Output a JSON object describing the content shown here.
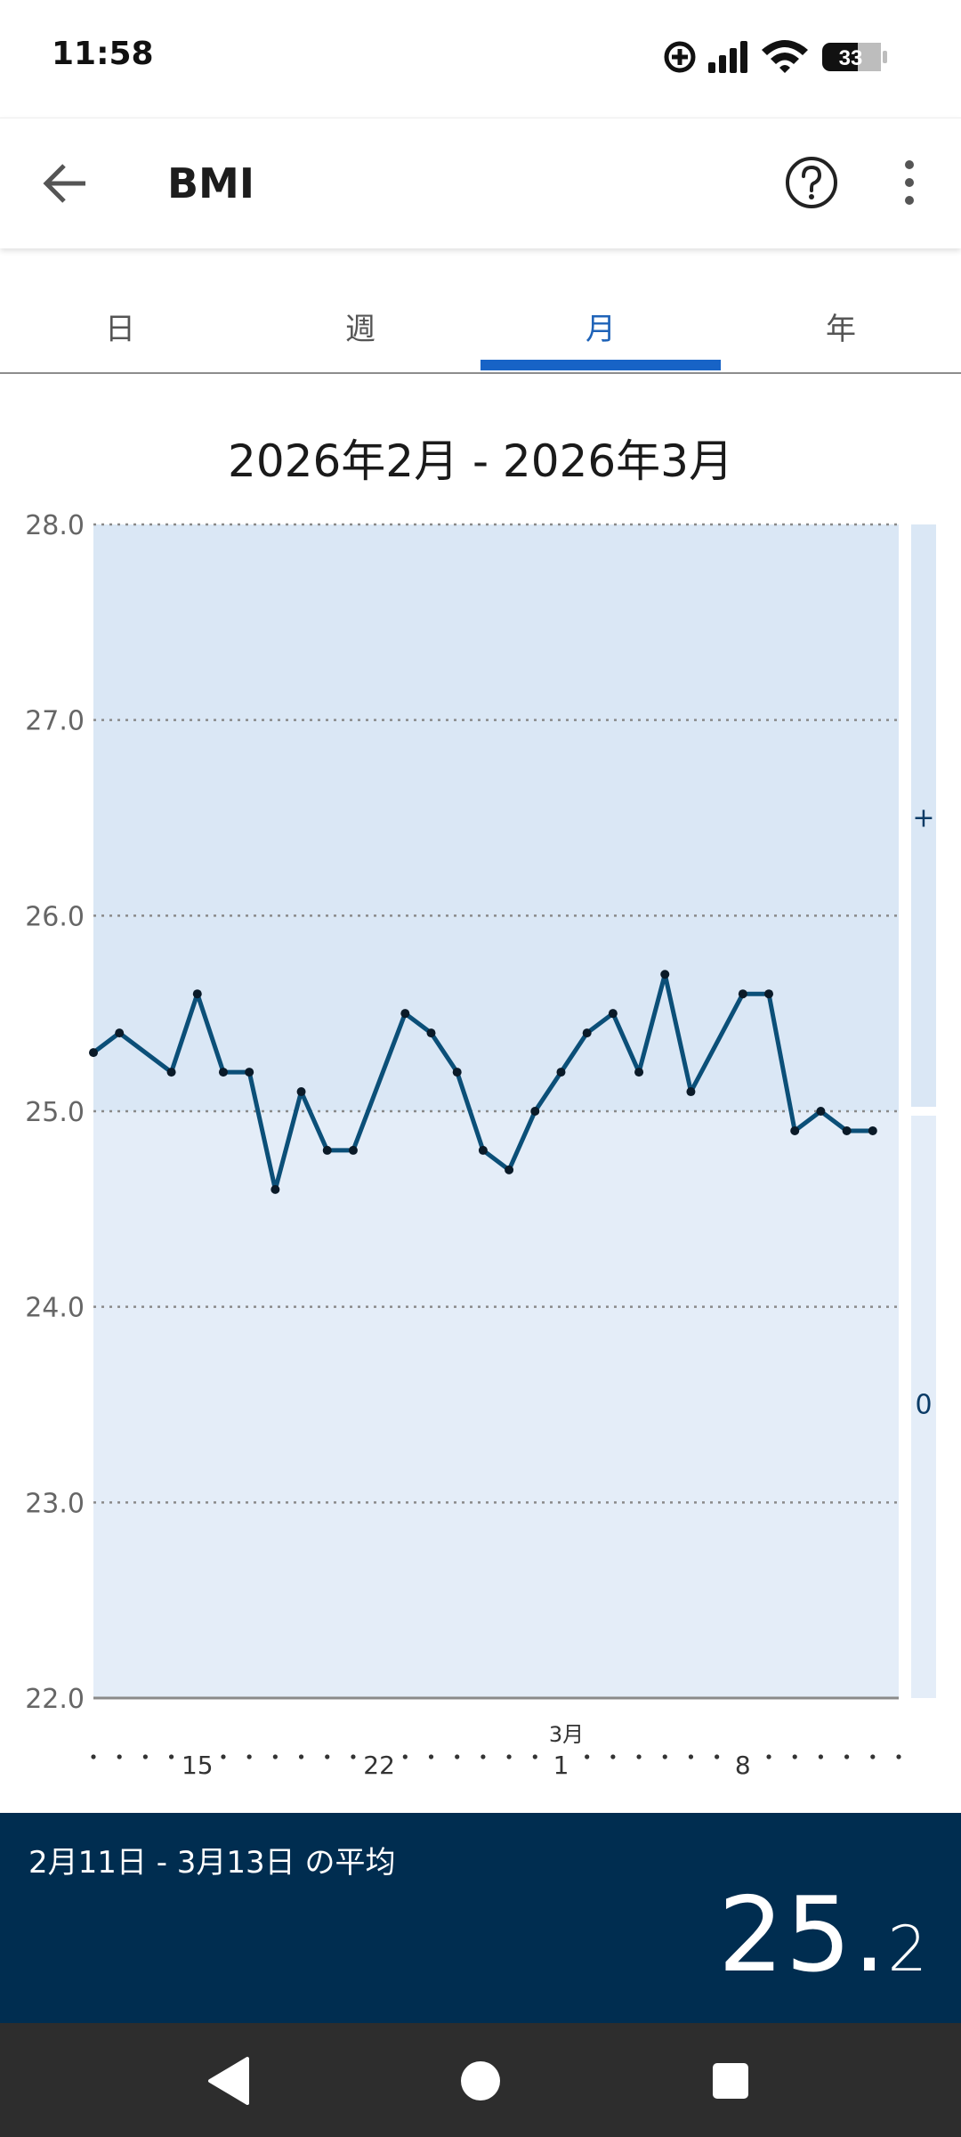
{
  "status": {
    "time": "11:58",
    "battery": "33"
  },
  "app_bar": {
    "title": "BMI"
  },
  "tabs": [
    {
      "label": "日",
      "active": false
    },
    {
      "label": "週",
      "active": false
    },
    {
      "label": "月",
      "active": true
    },
    {
      "label": "年",
      "active": false
    }
  ],
  "range_title": "2026年2月 - 2026年3月",
  "chart_data": {
    "type": "line",
    "title": "",
    "xlabel": "",
    "ylabel": "",
    "ylim": [
      22.0,
      28.0
    ],
    "y_ticks": [
      "28.0",
      "27.0",
      "26.0",
      "25.0",
      "24.0",
      "23.0",
      "22.0"
    ],
    "grid": true,
    "x_tick_labels": [
      {
        "day": 15,
        "label": "15"
      },
      {
        "day": 22,
        "label": "22"
      },
      {
        "day": 29,
        "label": "1",
        "month_label": "3月"
      },
      {
        "day": 36,
        "label": "8"
      }
    ],
    "zones": [
      {
        "label": "+",
        "from": 25.0,
        "to": 28.0,
        "color": "#dae7f5"
      },
      {
        "label": "0",
        "from": 22.0,
        "to": 25.0,
        "color": "#e4edf8"
      }
    ],
    "series": [
      {
        "color": "#0b4f78",
        "x": [
          "2月11日",
          "2月12日",
          "2月14日",
          "2月15日",
          "2月16日",
          "2月17日",
          "2月18日",
          "2月19日",
          "2月20日",
          "2月21日",
          "2月23日",
          "2月24日",
          "2月25日",
          "2月26日",
          "2月27日",
          "2月28日",
          "3月1日",
          "3月2日",
          "3月3日",
          "3月4日",
          "3月5日",
          "3月6日",
          "3月8日",
          "3月9日",
          "3月10日",
          "3月11日",
          "3月12日",
          "3月13日"
        ],
        "days": [
          11,
          12,
          14,
          15,
          16,
          17,
          18,
          19,
          20,
          21,
          23,
          24,
          25,
          26,
          27,
          28,
          29,
          30,
          31,
          32,
          33,
          34,
          36,
          37,
          38,
          39,
          40,
          41
        ],
        "values": [
          25.3,
          25.4,
          25.2,
          25.6,
          25.2,
          25.2,
          24.6,
          25.1,
          24.8,
          24.8,
          25.5,
          25.4,
          25.2,
          24.8,
          24.7,
          25.0,
          25.2,
          25.4,
          25.5,
          25.2,
          25.7,
          25.1,
          25.6,
          25.6,
          24.9,
          25.0,
          24.9,
          24.9
        ]
      }
    ]
  },
  "summary": {
    "label": "2月11日 - 3月13日 の平均",
    "value_int": "25.",
    "value_dec": "2"
  }
}
